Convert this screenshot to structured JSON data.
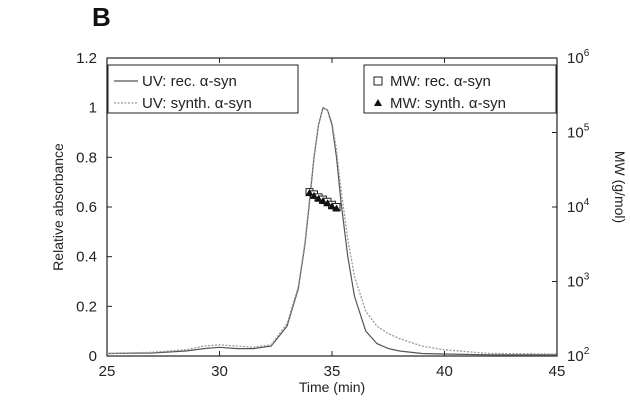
{
  "panel_label": "B",
  "chart_data": {
    "type": "line",
    "xlabel": "Time (min)",
    "ylabel": "Relative absorbance",
    "y2label": "MW (g/mol)",
    "xlim": [
      25,
      45
    ],
    "ylim": [
      0,
      1.2
    ],
    "y2lim_log10": [
      2,
      6
    ],
    "y2scale": "log",
    "x_ticks": [
      "25",
      "30",
      "35",
      "40",
      "45"
    ],
    "y_ticks": [
      "0",
      "0.2",
      "0.4",
      "0.6",
      "0.8",
      "1",
      "1.2"
    ],
    "y2_ticks": [
      "10",
      "10",
      "10",
      "10",
      "10"
    ],
    "y2_tick_exponents": [
      "2",
      "3",
      "4",
      "5",
      "6"
    ],
    "legend_left": [
      "UV: rec. α-syn",
      "UV: synth. α-syn"
    ],
    "legend_right": [
      "MW: rec. α-syn",
      "MW: synth. α-syn"
    ],
    "legend_left_placement": "top-left",
    "legend_right_placement": "top-right",
    "series": [
      {
        "name": "UV: rec. α-syn",
        "axis": "left",
        "color": "#555555",
        "x": [
          25,
          27,
          28.5,
          29.3,
          30,
          30.8,
          31.5,
          32.3,
          33,
          33.5,
          33.8,
          34,
          34.2,
          34.4,
          34.6,
          34.8,
          35,
          35.2,
          35.4,
          35.7,
          36,
          36.5,
          37,
          37.5,
          38,
          39,
          40,
          42,
          45
        ],
        "y": [
          0.01,
          0.012,
          0.02,
          0.03,
          0.035,
          0.03,
          0.03,
          0.04,
          0.12,
          0.27,
          0.45,
          0.62,
          0.8,
          0.93,
          1.0,
          0.99,
          0.93,
          0.8,
          0.62,
          0.4,
          0.24,
          0.1,
          0.05,
          0.03,
          0.02,
          0.01,
          0.008,
          0.005,
          0.005
        ]
      },
      {
        "name": "UV: synth. α-syn",
        "axis": "left",
        "color": "#999999",
        "x": [
          25,
          27,
          28.5,
          29.3,
          30,
          30.8,
          31.5,
          32.3,
          33,
          33.5,
          33.8,
          34,
          34.2,
          34.4,
          34.6,
          34.8,
          35,
          35.2,
          35.4,
          35.7,
          36,
          36.5,
          37,
          37.5,
          38,
          39,
          40,
          42,
          45
        ],
        "y": [
          0.01,
          0.015,
          0.025,
          0.04,
          0.045,
          0.04,
          0.035,
          0.045,
          0.13,
          0.28,
          0.46,
          0.63,
          0.8,
          0.93,
          1.0,
          0.99,
          0.94,
          0.83,
          0.67,
          0.47,
          0.32,
          0.18,
          0.12,
          0.09,
          0.07,
          0.04,
          0.025,
          0.01,
          0.008
        ]
      },
      {
        "name": "MW: rec. α-syn",
        "axis": "right",
        "marker": "square",
        "x": [
          34.0,
          34.2,
          34.4,
          34.6,
          34.8,
          35.0,
          35.2
        ],
        "log10_y": [
          4.2,
          4.17,
          4.13,
          4.1,
          4.07,
          4.03,
          4.0
        ]
      },
      {
        "name": "MW: synth. α-syn",
        "axis": "right",
        "marker": "triangle",
        "x": [
          34.0,
          34.2,
          34.4,
          34.6,
          34.8,
          35.0,
          35.2
        ],
        "log10_y": [
          4.19,
          4.15,
          4.11,
          4.08,
          4.05,
          4.01,
          3.98
        ]
      }
    ]
  }
}
